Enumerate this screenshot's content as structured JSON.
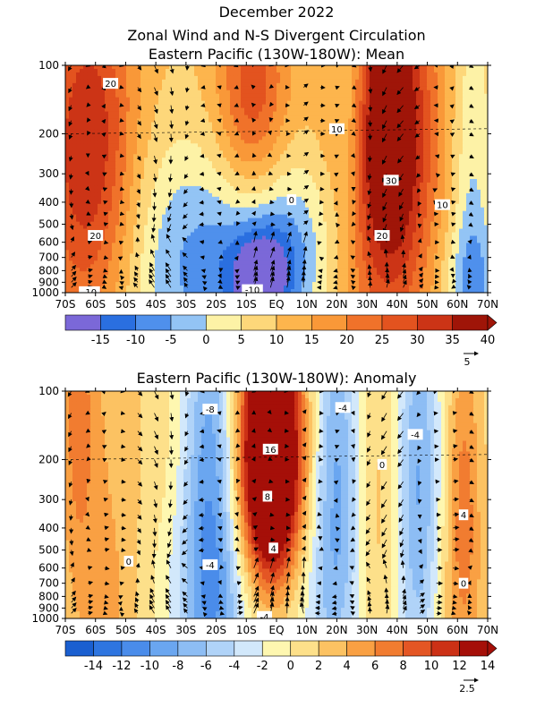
{
  "title_lines": [
    "December 2022",
    "Zonal Wind and N-S Divergent Circulation",
    "Eastern Pacific (130W-180W): Mean"
  ],
  "chart_data": [
    {
      "type": "heatmap",
      "subtype": "latitude-pressure contour with vectors",
      "title": "Eastern Pacific (130W-180W): Mean",
      "x_tick_labels": [
        "70S",
        "60S",
        "50S",
        "40S",
        "30S",
        "20S",
        "10S",
        "EQ",
        "10N",
        "20N",
        "30N",
        "40N",
        "50N",
        "60N",
        "70N"
      ],
      "y_tick_labels": [
        "100",
        "200",
        "300",
        "400",
        "500",
        "600",
        "700",
        "800",
        "900",
        "1000"
      ],
      "x_range": [
        -70,
        70
      ],
      "y_range": [
        1000,
        100
      ],
      "y_scale": "log",
      "colorbar_labels": [
        "-15",
        "-10",
        "-5",
        "0",
        "5",
        "10",
        "15",
        "20",
        "25",
        "30",
        "35",
        "40"
      ],
      "colorbar_bins": [
        -20,
        -15,
        -10,
        -5,
        0,
        5,
        10,
        15,
        20,
        25,
        30,
        35,
        40,
        45
      ],
      "colorbar_colors": [
        "#7b68d8",
        "#2a6fe0",
        "#4f90ec",
        "#93c4f5",
        "#fdf2a6",
        "#fdd77a",
        "#fdb54d",
        "#f99838",
        "#f0722a",
        "#e3531f",
        "#cc3416",
        "#9f1508"
      ],
      "vector_reference": "5",
      "contour_labels": [
        {
          "text": "20",
          "lat": -55,
          "p": 120
        },
        {
          "text": "10",
          "lat": 20,
          "p": 190
        },
        {
          "text": "0",
          "lat": 5,
          "p": 390
        },
        {
          "text": "30",
          "lat": 38,
          "p": 320
        },
        {
          "text": "10",
          "lat": 55,
          "p": 410
        },
        {
          "text": "20",
          "lat": -60,
          "p": 560
        },
        {
          "text": "20",
          "lat": 35,
          "p": 560
        },
        {
          "text": "-10",
          "lat": -8,
          "p": 970
        },
        {
          "text": "-10",
          "lat": -62,
          "p": 990
        }
      ],
      "features": [
        {
          "lat": -62,
          "p": 250,
          "value": 29,
          "sx": 11,
          "sy": 0.55
        },
        {
          "lat": -8,
          "p": 140,
          "value": 22,
          "sx": 8,
          "sy": 0.35
        },
        {
          "lat": 37,
          "p": 210,
          "value": 41,
          "sx": 10,
          "sy": 0.55
        },
        {
          "lat": -15,
          "p": 780,
          "value": -12,
          "sx": 17,
          "sy": 0.35
        },
        {
          "lat": -5,
          "p": 850,
          "value": -16,
          "sx": 7,
          "sy": 0.15
        },
        {
          "lat": 5,
          "p": 600,
          "value": -7,
          "sx": 12,
          "sy": 0.3
        },
        {
          "lat": -40,
          "p": 700,
          "value": -5,
          "sx": 15,
          "sy": 0.5
        },
        {
          "lat": 65,
          "p": 900,
          "value": -6,
          "sx": 8,
          "sy": 0.2
        },
        {
          "lat": 25,
          "p": 150,
          "value": -9,
          "sx": 4,
          "sy": 0.35
        },
        {
          "lat": 65,
          "p": 450,
          "value": -8,
          "sx": 5,
          "sy": 0.8
        }
      ],
      "background_value": 11
    },
    {
      "type": "heatmap",
      "subtype": "latitude-pressure contour with vectors",
      "title": "Eastern Pacific (130W-180W): Anomaly",
      "x_tick_labels": [
        "70S",
        "60S",
        "50S",
        "40S",
        "30S",
        "20S",
        "10S",
        "EQ",
        "10N",
        "20N",
        "30N",
        "40N",
        "50N",
        "60N",
        "70N"
      ],
      "y_tick_labels": [
        "100",
        "200",
        "300",
        "400",
        "500",
        "600",
        "700",
        "800",
        "900",
        "1000"
      ],
      "x_range": [
        -70,
        70
      ],
      "y_range": [
        1000,
        100
      ],
      "y_scale": "log",
      "colorbar_labels": [
        "-14",
        "-12",
        "-10",
        "-8",
        "-6",
        "-4",
        "-2",
        "0",
        "2",
        "4",
        "6",
        "8",
        "10",
        "12",
        "14"
      ],
      "colorbar_bins": [
        -16,
        -14,
        -12,
        -10,
        -8,
        -6,
        -4,
        -2,
        0,
        2,
        4,
        6,
        8,
        10,
        12,
        14,
        16
      ],
      "colorbar_colors": [
        "#1a5fd0",
        "#2e75e0",
        "#4a8cea",
        "#6aa6f0",
        "#8dbdf4",
        "#b0d3f8",
        "#d2e8fb",
        "#fef7b0",
        "#fde08a",
        "#fcc262",
        "#f9a043",
        "#f17c30",
        "#e45624",
        "#cc3116",
        "#a50f08"
      ],
      "vector_reference": "2.5",
      "contour_labels": [
        {
          "text": "-8",
          "lat": -22,
          "p": 120
        },
        {
          "text": "-4",
          "lat": 22,
          "p": 118
        },
        {
          "text": "-4",
          "lat": 46,
          "p": 155
        },
        {
          "text": "16",
          "lat": -2,
          "p": 180
        },
        {
          "text": "0",
          "lat": 35,
          "p": 210
        },
        {
          "text": "8",
          "lat": -3,
          "p": 290
        },
        {
          "text": "4",
          "lat": 62,
          "p": 350
        },
        {
          "text": "4",
          "lat": -1,
          "p": 490
        },
        {
          "text": "0",
          "lat": -49,
          "p": 560
        },
        {
          "text": "-4",
          "lat": -22,
          "p": 580
        },
        {
          "text": "0",
          "lat": 62,
          "p": 700
        },
        {
          "text": "-4",
          "lat": -4,
          "p": 980
        }
      ],
      "features": [
        {
          "lat": -2,
          "p": 150,
          "value": 19,
          "sx": 7,
          "sy": 0.45
        },
        {
          "lat": -2,
          "p": 330,
          "value": 9,
          "sx": 8,
          "sy": 0.35
        },
        {
          "lat": -22,
          "p": 250,
          "value": -10,
          "sx": 6.5,
          "sy": 0.7
        },
        {
          "lat": 20,
          "p": 230,
          "value": -9,
          "sx": 6,
          "sy": 0.6
        },
        {
          "lat": 47,
          "p": 270,
          "value": -9,
          "sx": 5.5,
          "sy": 0.7
        },
        {
          "lat": 62,
          "p": 280,
          "value": 6,
          "sx": 4,
          "sy": 0.5
        },
        {
          "lat": -66,
          "p": 130,
          "value": 5,
          "sx": 4,
          "sy": 0.5
        },
        {
          "lat": -57,
          "p": 300,
          "value": 3,
          "sx": 9,
          "sy": 0.9
        },
        {
          "lat": 33,
          "p": 450,
          "value": 3,
          "sx": 6,
          "sy": 0.6
        },
        {
          "lat": -8,
          "p": 850,
          "value": -5,
          "sx": 22,
          "sy": 0.3
        },
        {
          "lat": -55,
          "p": 900,
          "value": 2,
          "sx": 8,
          "sy": 0.3
        },
        {
          "lat": 60,
          "p": 850,
          "value": 2,
          "sx": 8,
          "sy": 0.3
        }
      ],
      "background_value": 1
    }
  ]
}
